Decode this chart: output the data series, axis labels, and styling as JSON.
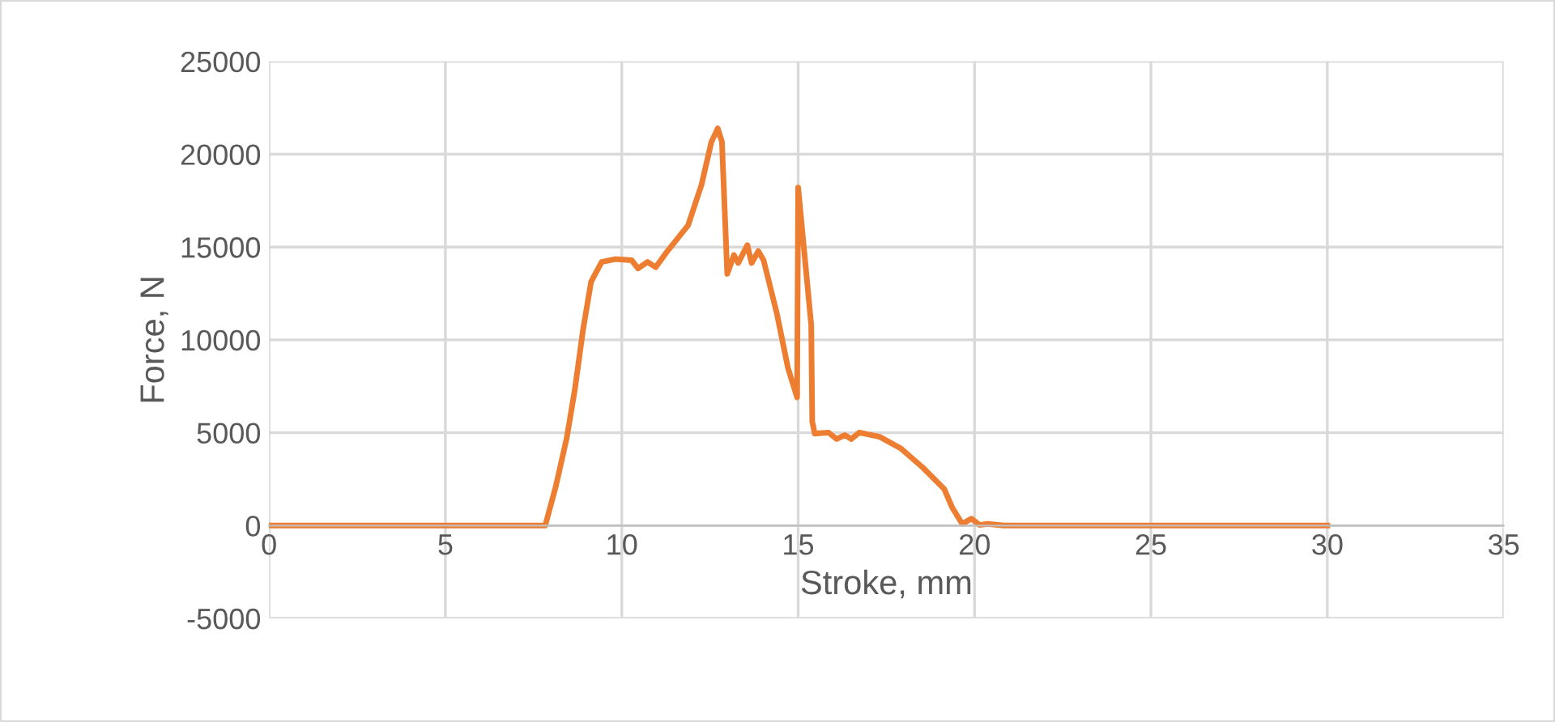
{
  "chart_data": {
    "type": "line",
    "xlabel": "Stroke, mm",
    "ylabel": "Force, N",
    "xlim": [
      0,
      35
    ],
    "xticks": [
      0,
      5,
      10,
      15,
      20,
      25,
      30,
      35
    ],
    "ylim": [
      -5000,
      25000
    ],
    "yticks": [
      -5000,
      0,
      5000,
      10000,
      15000,
      20000,
      25000
    ],
    "grid": true,
    "legend": false,
    "marker": "none",
    "line_style": "solid",
    "series": [
      {
        "color": "#ed7d31",
        "x": [
          0,
          5,
          7.5,
          7.83,
          8.13,
          8.44,
          8.67,
          8.9,
          9.13,
          9.43,
          9.82,
          10.28,
          10.46,
          10.73,
          10.96,
          11.27,
          11.88,
          12.26,
          12.54,
          12.72,
          12.84,
          12.99,
          13.18,
          13.3,
          13.56,
          13.68,
          13.87,
          14.02,
          14.4,
          14.71,
          14.97,
          15.0,
          15.37,
          15.4,
          15.47,
          15.86,
          16.09,
          16.32,
          16.51,
          16.73,
          17.31,
          17.92,
          18.53,
          19.14,
          19.37,
          19.65,
          19.91,
          20.14,
          20.37,
          20.83,
          25,
          30
        ],
        "values": [
          0,
          0,
          0,
          0,
          2110,
          4720,
          7330,
          10520,
          13130,
          14200,
          14350,
          14290,
          13850,
          14200,
          13910,
          14720,
          16170,
          18350,
          20660,
          21390,
          20660,
          13560,
          14570,
          14140,
          15100,
          14140,
          14780,
          14290,
          11390,
          8490,
          6900,
          18200,
          10810,
          5590,
          4950,
          5010,
          4660,
          4870,
          4660,
          5010,
          4780,
          4140,
          3130,
          1970,
          960,
          90,
          370,
          30,
          90,
          0,
          0,
          0
        ]
      }
    ]
  }
}
